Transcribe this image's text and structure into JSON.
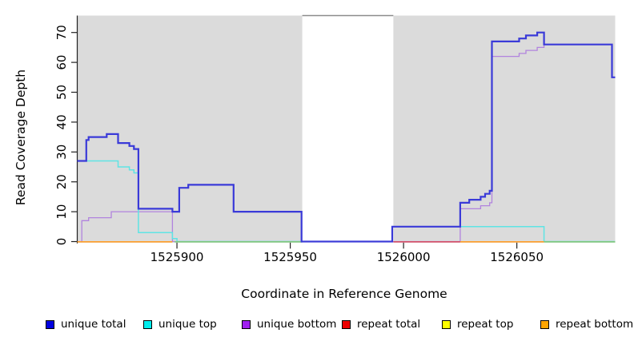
{
  "axes": {
    "y": {
      "label": "Read Coverage Depth",
      "ticks": [
        0,
        10,
        20,
        30,
        40,
        50,
        60,
        70
      ]
    },
    "x": {
      "label": "Coordinate in Reference Genome",
      "ticks": [
        1525900,
        1525950,
        1526000,
        1526050
      ]
    }
  },
  "legend": {
    "items": [
      {
        "label": "unique total",
        "color": "#0000e0"
      },
      {
        "label": "unique top",
        "color": "#00eeee"
      },
      {
        "label": "unique bottom",
        "color": "#a020f0"
      },
      {
        "label": "repeat total",
        "color": "#ee0000"
      },
      {
        "label": "repeat top",
        "color": "#ffff00"
      },
      {
        "label": "repeat bottom",
        "color": "#ffa500"
      }
    ]
  },
  "chart_data": {
    "type": "line",
    "step": true,
    "title": "",
    "xlabel": "Coordinate in Reference Genome",
    "ylabel": "Read Coverage Depth",
    "x_domain": [
      1525856,
      1526093.4
    ],
    "y_domain": [
      0,
      76
    ],
    "grid": false,
    "legend_position": "bottom",
    "panel_color": "#dbdbdb",
    "gap_border_color": "#8c8c8c",
    "shaded_regions": [
      {
        "x1": 1525856,
        "x2": 1525955.3
      },
      {
        "x1": 1525995.5,
        "x2": 1526093.4
      }
    ],
    "no_data_gap": {
      "x1": 1525955.3,
      "x2": 1525995.5
    },
    "series": [
      {
        "name": "unique bottom",
        "color": "#b183de",
        "width": 1.3,
        "points": [
          [
            1525856,
            0
          ],
          [
            1525858,
            7
          ],
          [
            1525861,
            8
          ],
          [
            1525871,
            10
          ],
          [
            1525898,
            0
          ],
          [
            1526025,
            11
          ],
          [
            1526034,
            12
          ],
          [
            1526038,
            13
          ],
          [
            1526039,
            62
          ],
          [
            1526051,
            63
          ],
          [
            1526054,
            64
          ],
          [
            1526059,
            65
          ],
          [
            1526062,
            66
          ],
          [
            1526092,
            55
          ]
        ],
        "end": 1526093.4
      },
      {
        "name": "unique top",
        "color": "#5fe4e4",
        "width": 1.5,
        "points": [
          [
            1525856,
            27
          ],
          [
            1525874,
            25
          ],
          [
            1525879,
            24
          ],
          [
            1525881,
            23
          ],
          [
            1525883,
            3
          ],
          [
            1525898,
            1
          ],
          [
            1525900,
            0
          ],
          [
            1525995,
            5
          ],
          [
            1526062,
            0
          ]
        ],
        "end": 1526093.4
      },
      {
        "name": "unique total",
        "color": "#3a3ad8",
        "width": 2.2,
        "points": [
          [
            1525856,
            27
          ],
          [
            1525860,
            34
          ],
          [
            1525861,
            35
          ],
          [
            1525869,
            36
          ],
          [
            1525874,
            33
          ],
          [
            1525879,
            32
          ],
          [
            1525881,
            31
          ],
          [
            1525883,
            11
          ],
          [
            1525898,
            10
          ],
          [
            1525901,
            18
          ],
          [
            1525905,
            19
          ],
          [
            1525925,
            10
          ],
          [
            1525955,
            0
          ],
          [
            1525995,
            5
          ],
          [
            1526025,
            13
          ],
          [
            1526029,
            14
          ],
          [
            1526034,
            15
          ],
          [
            1526036,
            16
          ],
          [
            1526038,
            17
          ],
          [
            1526039,
            67
          ],
          [
            1526051,
            68
          ],
          [
            1526054,
            69
          ],
          [
            1526059,
            70
          ],
          [
            1526062,
            66
          ],
          [
            1526092,
            55
          ]
        ],
        "end": 1526093.4
      },
      {
        "name": "repeat total",
        "color": "#d44a66",
        "width": 1.6,
        "points": [
          [
            1525856,
            0
          ]
        ],
        "end": 1526093.4,
        "hidden": true
      },
      {
        "name": "repeat top",
        "color": "#ffff00",
        "width": 1.6,
        "points": [
          [
            1525856,
            0
          ]
        ],
        "end": 1526093.4,
        "hidden": true
      },
      {
        "name": "repeat bottom",
        "color": "#ff9d26",
        "width": 1.6,
        "points": [
          [
            1525856,
            0
          ]
        ],
        "end": 1526093.4,
        "hidden": true
      }
    ],
    "zero_line_segments": [
      {
        "series": "repeat bottom",
        "color": "#ff9d26",
        "x1": 1525856,
        "x2": 1525898
      },
      {
        "series": "overlap-green",
        "color": "#7cc87c",
        "x1": 1525899,
        "x2": 1525955.3
      },
      {
        "series": "repeat total",
        "color": "#d44a66",
        "x1": 1525995.5,
        "x2": 1526025
      },
      {
        "series": "repeat bottom",
        "color": "#ff9d26",
        "x1": 1526025,
        "x2": 1526062
      },
      {
        "series": "overlap-green",
        "color": "#7cc87c",
        "x1": 1526062,
        "x2": 1526093.4
      }
    ]
  }
}
